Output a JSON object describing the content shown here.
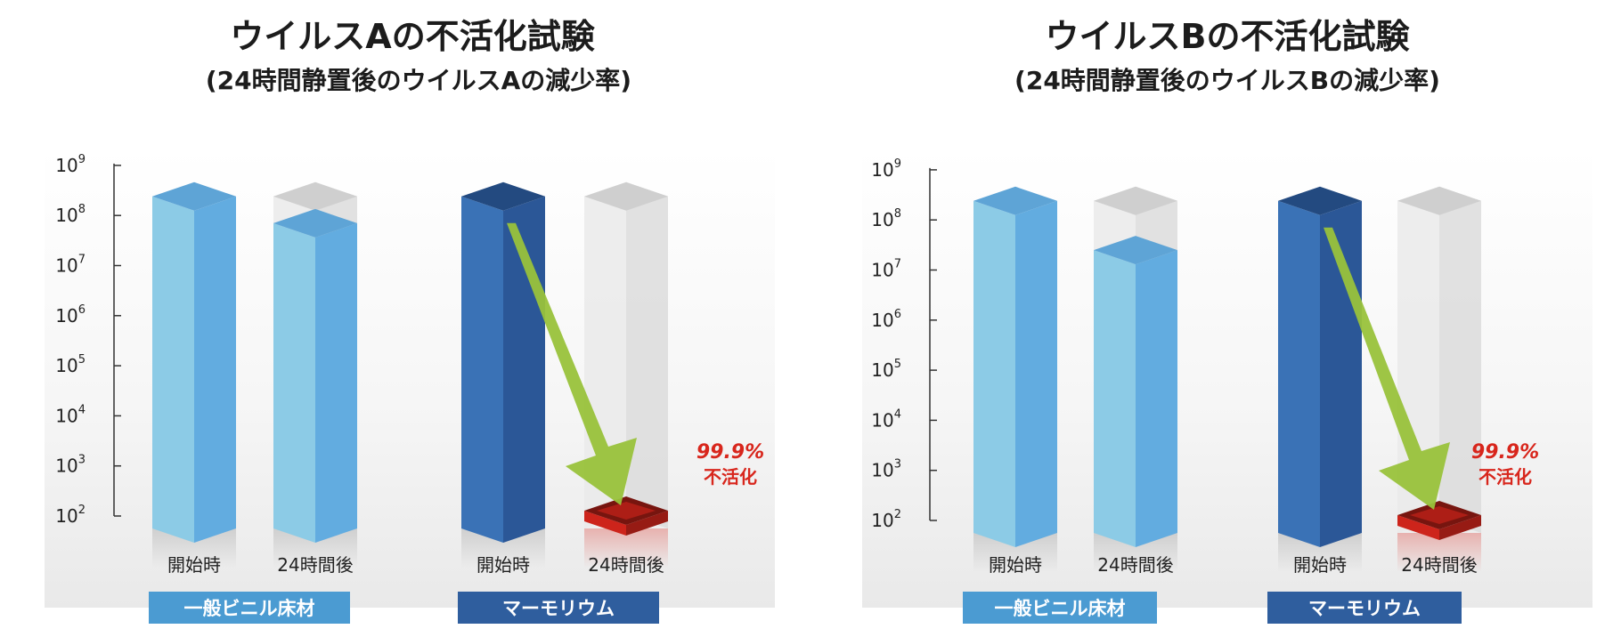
{
  "chart_data": [
    {
      "type": "bar",
      "title": "ウイルスAの不活化試験",
      "subtitle": "(24時間静置後のウイルスAの減少率)",
      "y_scale": "log10",
      "ylim": [
        100,
        1000000000
      ],
      "y_ticks": [
        {
          "base": "10",
          "exp": "9"
        },
        {
          "base": "10",
          "exp": "8"
        },
        {
          "base": "10",
          "exp": "7"
        },
        {
          "base": "10",
          "exp": "6"
        },
        {
          "base": "10",
          "exp": "5"
        },
        {
          "base": "10",
          "exp": "4"
        },
        {
          "base": "10",
          "exp": "3"
        },
        {
          "base": "10",
          "exp": "2"
        }
      ],
      "groups": [
        {
          "label": "一般ビニル床材",
          "bars": [
            {
              "label": "開始時",
              "value": 240000000
            },
            {
              "label": "24時間後",
              "value": 70000000
            }
          ]
        },
        {
          "label": "マーモリウム",
          "bars": [
            {
              "label": "開始時",
              "value": 240000000
            },
            {
              "label": "24時間後",
              "value": 100
            }
          ]
        }
      ],
      "annotation": {
        "value": "99.9%",
        "text": "不活化"
      },
      "colors": {
        "vinyl": "#6cb4dd",
        "marmoleum": "#2f5e9e",
        "reduced": "#d8261c",
        "arrow": "#99c23b"
      }
    },
    {
      "type": "bar",
      "title": "ウイルスBの不活化試験",
      "subtitle": "(24時間静置後のウイルスBの減少率)",
      "y_scale": "log10",
      "ylim": [
        100,
        1000000000
      ],
      "y_ticks": [
        {
          "base": "10",
          "exp": "9"
        },
        {
          "base": "10",
          "exp": "8"
        },
        {
          "base": "10",
          "exp": "7"
        },
        {
          "base": "10",
          "exp": "6"
        },
        {
          "base": "10",
          "exp": "5"
        },
        {
          "base": "10",
          "exp": "4"
        },
        {
          "base": "10",
          "exp": "3"
        },
        {
          "base": "10",
          "exp": "2"
        }
      ],
      "groups": [
        {
          "label": "一般ビニル床材",
          "bars": [
            {
              "label": "開始時",
              "value": 240000000
            },
            {
              "label": "24時間後",
              "value": 25000000
            }
          ]
        },
        {
          "label": "マーモリウム",
          "bars": [
            {
              "label": "開始時",
              "value": 240000000
            },
            {
              "label": "24時間後",
              "value": 100
            }
          ]
        }
      ],
      "annotation": {
        "value": "99.9%",
        "text": "不活化"
      },
      "colors": {
        "vinyl": "#6cb4dd",
        "marmoleum": "#2f5e9e",
        "reduced": "#d8261c",
        "arrow": "#99c23b"
      }
    }
  ]
}
